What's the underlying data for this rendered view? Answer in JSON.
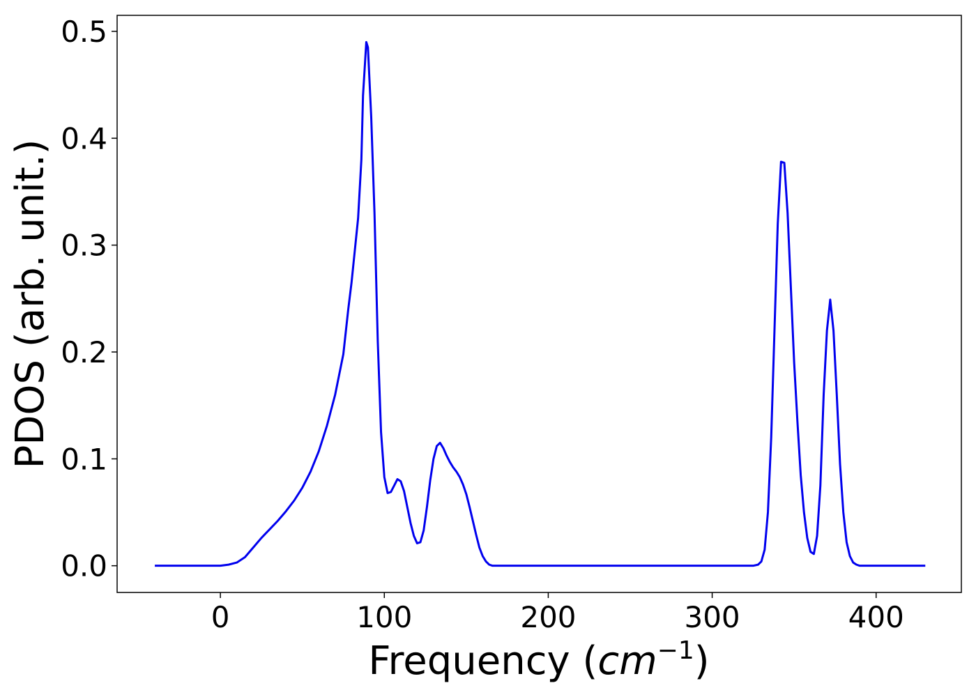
{
  "chart_data": {
    "type": "line",
    "xlabel_text": "Frequency (",
    "xlabel_math": "cm",
    "xlabel_sup": "−1",
    "xlabel_close": ")",
    "ylabel": "PDOS (arb. unit.)",
    "xlim": [
      -63,
      452
    ],
    "ylim": [
      -0.025,
      0.515
    ],
    "xticks": [
      0,
      100,
      200,
      300,
      400
    ],
    "xtick_labels": [
      "0",
      "100",
      "200",
      "300",
      "400"
    ],
    "yticks": [
      0.0,
      0.1,
      0.2,
      0.3,
      0.4,
      0.5
    ],
    "ytick_labels": [
      "0.0",
      "0.1",
      "0.2",
      "0.3",
      "0.4",
      "0.5"
    ],
    "grid": false,
    "series": [
      {
        "color": "#0000ee",
        "x": [
          -40,
          -20,
          0,
          5,
          10,
          15,
          20,
          25,
          30,
          35,
          40,
          45,
          50,
          55,
          60,
          65,
          70,
          75,
          78,
          80,
          82,
          84,
          86,
          87,
          88,
          89,
          90,
          92,
          94,
          96,
          98,
          100,
          102,
          104,
          106,
          108,
          110,
          112,
          114,
          116,
          118,
          120,
          122,
          124,
          126,
          128,
          130,
          132,
          134,
          136,
          138,
          140,
          142,
          144,
          146,
          148,
          150,
          152,
          154,
          156,
          158,
          160,
          162,
          164,
          166,
          168,
          170,
          172,
          174,
          176,
          180,
          200,
          250,
          300,
          325,
          328,
          330,
          332,
          334,
          336,
          338,
          340,
          342,
          344,
          346,
          348,
          350,
          352,
          354,
          356,
          358,
          360,
          362,
          364,
          366,
          368,
          370,
          372,
          374,
          376,
          378,
          380,
          382,
          384,
          386,
          388,
          390,
          392,
          394,
          396,
          398,
          400,
          405,
          410,
          420,
          430
        ],
        "y": [
          0.0,
          0.0,
          0.0,
          0.001,
          0.003,
          0.008,
          0.017,
          0.026,
          0.034,
          0.042,
          0.051,
          0.061,
          0.073,
          0.088,
          0.107,
          0.131,
          0.16,
          0.198,
          0.24,
          0.265,
          0.295,
          0.325,
          0.38,
          0.44,
          0.465,
          0.49,
          0.485,
          0.42,
          0.33,
          0.21,
          0.125,
          0.083,
          0.068,
          0.069,
          0.075,
          0.081,
          0.079,
          0.07,
          0.055,
          0.04,
          0.028,
          0.021,
          0.022,
          0.033,
          0.055,
          0.08,
          0.1,
          0.112,
          0.115,
          0.11,
          0.103,
          0.097,
          0.092,
          0.088,
          0.083,
          0.076,
          0.067,
          0.055,
          0.042,
          0.029,
          0.017,
          0.009,
          0.004,
          0.001,
          0.0,
          0.0,
          0.0,
          0.0,
          0.0,
          0.0,
          0.0,
          0.0,
          0.0,
          0.0,
          0.0,
          0.001,
          0.004,
          0.015,
          0.05,
          0.12,
          0.22,
          0.32,
          0.378,
          0.377,
          0.33,
          0.26,
          0.19,
          0.135,
          0.085,
          0.05,
          0.026,
          0.013,
          0.011,
          0.028,
          0.075,
          0.16,
          0.22,
          0.249,
          0.22,
          0.16,
          0.095,
          0.05,
          0.022,
          0.009,
          0.003,
          0.001,
          0.0,
          0.0,
          0.0,
          0.0,
          0.0,
          0.0,
          0.0,
          0.0,
          0.0,
          0.0
        ]
      }
    ]
  }
}
